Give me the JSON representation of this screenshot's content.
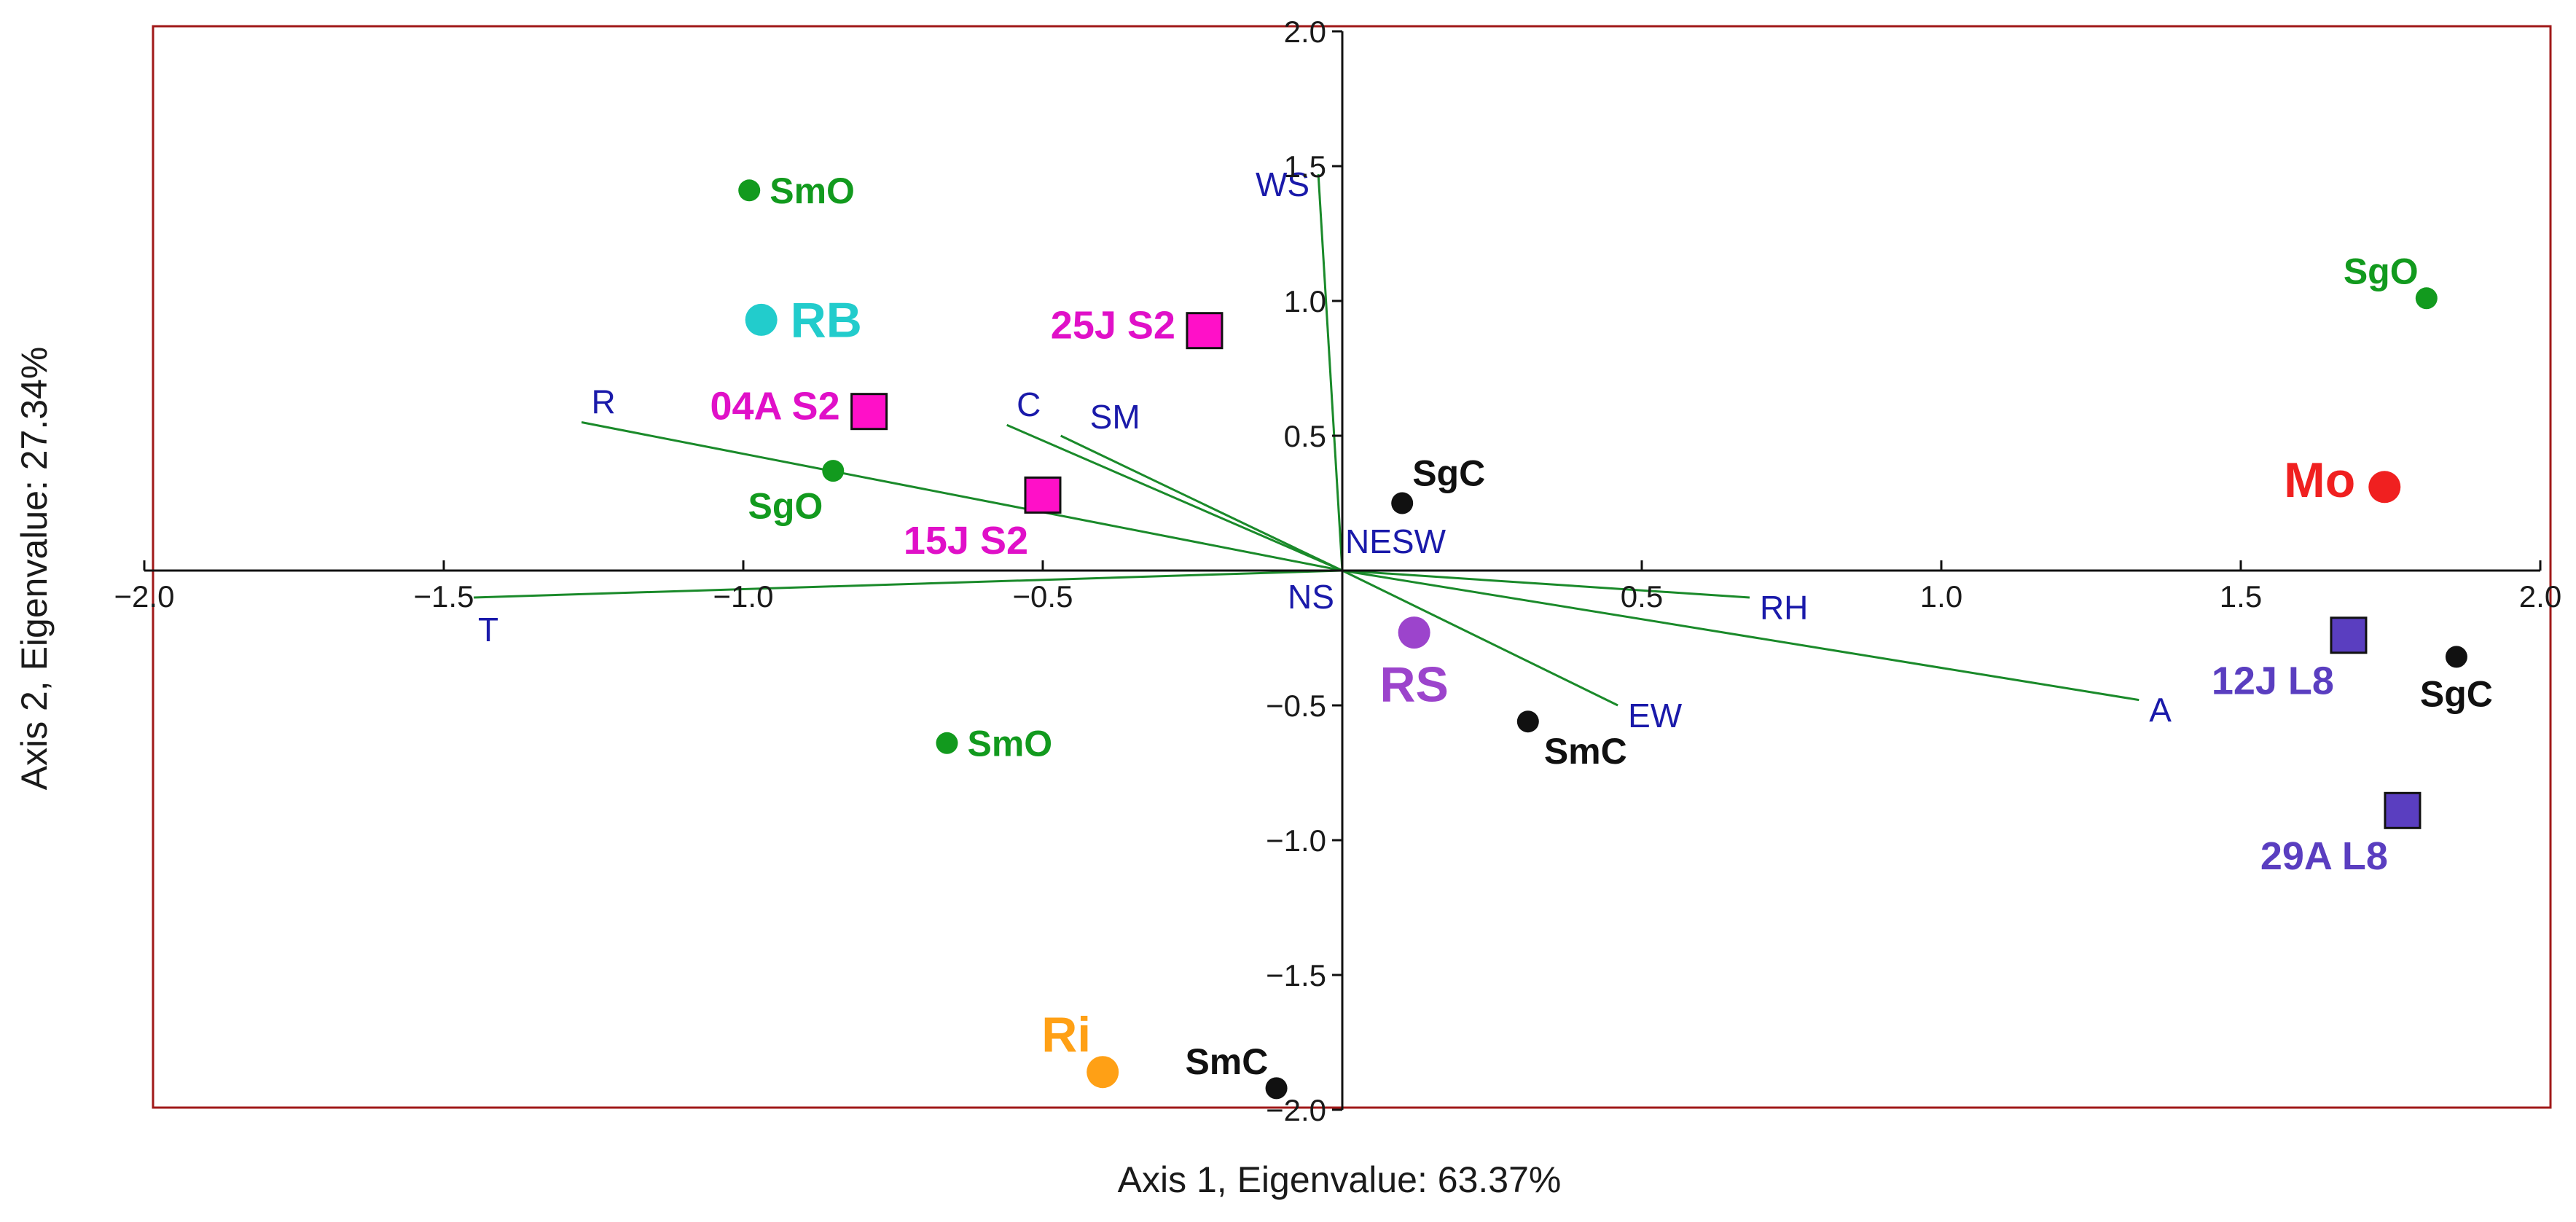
{
  "chart_data": {
    "type": "scatter",
    "subtype": "biplot",
    "xlabel": "Axis 1, Eigenvalue: 63.37%",
    "ylabel": "Axis 2, Eigenvalue: 27.34%",
    "xlim": [
      -2.0,
      2.0
    ],
    "ylim": [
      -2.0,
      2.0
    ],
    "xticks": [
      -2.0,
      -1.5,
      -1.0,
      -0.5,
      0.5,
      1.0,
      1.5,
      2.0
    ],
    "yticks": [
      2.0,
      1.5,
      1.0,
      0.5,
      -0.5,
      -1.0,
      -1.5,
      -2.0
    ],
    "xtick_labels": [
      "−2.0",
      "−1.5",
      "−1.0",
      "−0.5",
      "0.5",
      "1.0",
      "1.5",
      "2.0"
    ],
    "ytick_labels": [
      "2.0",
      "1.5",
      "1.0",
      "0.5",
      "−0.5",
      "−1.0",
      "−1.5",
      "−2.0"
    ],
    "frame_color": "#a01818",
    "vector_color": "#1a8a2a",
    "vector_label_color": "#1a1aaa",
    "vectors": [
      {
        "label": "WS",
        "x": -0.04,
        "y": 1.47,
        "label_pos": "left"
      },
      {
        "label": "R",
        "x": -1.27,
        "y": 0.55,
        "label_pos": "above"
      },
      {
        "label": "C",
        "x": -0.56,
        "y": 0.54,
        "label_pos": "above"
      },
      {
        "label": "SM",
        "x": -0.47,
        "y": 0.5,
        "label_pos": "above-right"
      },
      {
        "label": "NESW",
        "x": 0.0,
        "y": 0.0,
        "label_pos": "upper-right"
      },
      {
        "label": "NS",
        "x": 0.0,
        "y": 0.0,
        "label_pos": "below-left"
      },
      {
        "label": "T",
        "x": -1.45,
        "y": -0.1,
        "label_pos": "below"
      },
      {
        "label": "RH",
        "x": 0.68,
        "y": -0.1,
        "label_pos": "right"
      },
      {
        "label": "EW",
        "x": 0.46,
        "y": -0.5,
        "label_pos": "right"
      },
      {
        "label": "A",
        "x": 1.33,
        "y": -0.48,
        "label_pos": "right"
      }
    ],
    "points": [
      {
        "label": "SmO",
        "x": -0.99,
        "y": 1.41,
        "marker": "circle",
        "size": "small",
        "color": "#129a1e",
        "label_color": "#129a1e",
        "label_pos": "right"
      },
      {
        "label": "RB",
        "x": -0.97,
        "y": 0.93,
        "marker": "circle",
        "size": "large",
        "color": "#22cccc",
        "label_color": "#22cccc",
        "label_pos": "right"
      },
      {
        "label": "SgO",
        "x": -0.85,
        "y": 0.37,
        "marker": "circle",
        "size": "small",
        "color": "#129a1e",
        "label_color": "#129a1e",
        "label_pos": "below-left"
      },
      {
        "label": "04A S2",
        "x": -0.79,
        "y": 0.59,
        "marker": "square",
        "size": "large",
        "color": "#ff10c8",
        "label_color": "#e010c8",
        "label_pos": "left"
      },
      {
        "label": "25J S2",
        "x": -0.23,
        "y": 0.89,
        "marker": "square",
        "size": "large",
        "color": "#ff10c8",
        "label_color": "#e010c8",
        "label_pos": "left"
      },
      {
        "label": "15J S2",
        "x": -0.5,
        "y": 0.28,
        "marker": "square",
        "size": "large",
        "color": "#ff10c8",
        "label_color": "#e010c8",
        "label_pos": "below-left"
      },
      {
        "label": "SmO",
        "x": -0.66,
        "y": -0.64,
        "marker": "circle",
        "size": "small",
        "color": "#129a1e",
        "label_color": "#129a1e",
        "label_pos": "right"
      },
      {
        "label": "Ri",
        "x": -0.4,
        "y": -1.86,
        "marker": "circle",
        "size": "large",
        "color": "#ffa015",
        "label_color": "#ffa015",
        "label_pos": "above-left"
      },
      {
        "label": "SmC",
        "x": -0.11,
        "y": -1.92,
        "marker": "circle",
        "size": "small",
        "color": "#111111",
        "label_color": "#111111",
        "label_pos": "above-left"
      },
      {
        "label": "SgC",
        "x": 0.1,
        "y": 0.25,
        "marker": "circle",
        "size": "small",
        "color": "#111111",
        "label_color": "#111111",
        "label_pos": "above-right"
      },
      {
        "label": "RS",
        "x": 0.12,
        "y": -0.23,
        "marker": "circle",
        "size": "large",
        "color": "#9c44cc",
        "label_color": "#9c44cc",
        "label_pos": "below"
      },
      {
        "label": "SmC",
        "x": 0.31,
        "y": -0.56,
        "marker": "circle",
        "size": "small",
        "color": "#111111",
        "label_color": "#111111",
        "label_pos": "below-right"
      },
      {
        "label": "SgO",
        "x": 1.81,
        "y": 1.01,
        "marker": "circle",
        "size": "small",
        "color": "#129a1e",
        "label_color": "#129a1e",
        "label_pos": "above-left"
      },
      {
        "label": "Mo",
        "x": 1.74,
        "y": 0.31,
        "marker": "circle",
        "size": "large",
        "color": "#f02020",
        "label_color": "#f02020",
        "label_pos": "left"
      },
      {
        "label": "12J L8",
        "x": 1.68,
        "y": -0.24,
        "marker": "square",
        "size": "large",
        "color": "#5a3ec0",
        "label_color": "#5a3ec0",
        "label_pos": "below-left"
      },
      {
        "label": "SgC",
        "x": 1.86,
        "y": -0.32,
        "marker": "circle",
        "size": "small",
        "color": "#111111",
        "label_color": "#111111",
        "label_pos": "below"
      },
      {
        "label": "29A L8",
        "x": 1.77,
        "y": -0.89,
        "marker": "square",
        "size": "large",
        "color": "#5a3ec0",
        "label_color": "#5a3ec0",
        "label_pos": "below-left"
      }
    ]
  }
}
